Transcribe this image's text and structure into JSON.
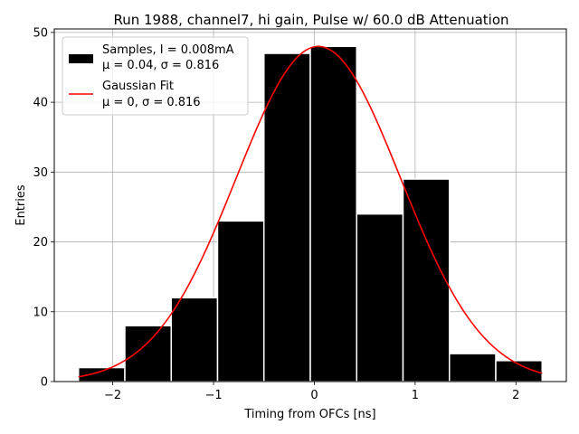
{
  "chart_data": {
    "type": "bar",
    "title": "Run 1988, channel7, hi gain, Pulse w/ 60.0 dB Attenuation",
    "xlabel": "Timing from OFCs [ns]",
    "ylabel": "Entries",
    "xlim": [
      -2.58,
      2.5
    ],
    "ylim": [
      0,
      50.5
    ],
    "grid": true,
    "legend_position": "top-left",
    "x_ticks": [
      -2,
      -1,
      0,
      1,
      2
    ],
    "x_tick_labels": [
      "−2",
      "−1",
      "0",
      "1",
      "2"
    ],
    "y_ticks": [
      0,
      10,
      20,
      30,
      40,
      50
    ],
    "y_tick_labels": [
      "0",
      "10",
      "20",
      "30",
      "40",
      "50"
    ],
    "histogram": {
      "name": "Samples, I = 0.008mA",
      "stats_label": "μ = 0.04, σ = 0.816",
      "bin_edges": [
        -2.34,
        -1.88,
        -1.42,
        -0.96,
        -0.5,
        -0.04,
        0.42,
        0.88,
        1.34,
        1.8,
        2.26
      ],
      "counts": [
        2,
        8,
        12,
        23,
        47,
        48,
        24,
        29,
        4,
        3
      ],
      "color": "#000000",
      "edge_color": "#ffffff"
    },
    "fit": {
      "name": "Gaussian Fit",
      "stats_label": "μ = 0, σ = 0.816",
      "mu": 0.04,
      "sigma": 0.816,
      "amplitude": 48,
      "x_range": [
        -2.34,
        2.26
      ],
      "color": "#ff0000"
    }
  }
}
